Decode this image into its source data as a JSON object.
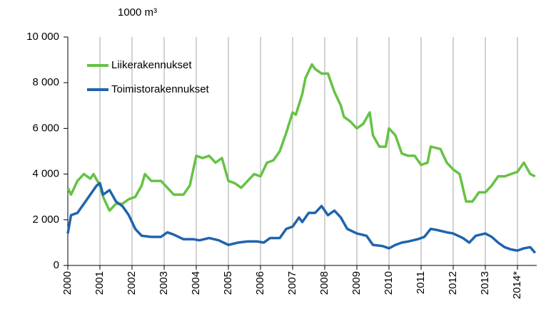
{
  "chart_data": {
    "type": "line",
    "y_unit_label": "1000 m³",
    "xlim": [
      2000,
      2014.6
    ],
    "xticks": [
      2000,
      2001,
      2002,
      2003,
      2004,
      2005,
      2006,
      2007,
      2008,
      2009,
      2010,
      2011,
      2012,
      2013,
      {
        "value": 2014,
        "label": "2014*"
      }
    ],
    "ylim": [
      0,
      10000
    ],
    "yticks": [
      {
        "value": 0,
        "label": "0"
      },
      {
        "value": 2000,
        "label": "2 000"
      },
      {
        "value": 4000,
        "label": "4 000"
      },
      {
        "value": 6000,
        "label": "6 000"
      },
      {
        "value": 8000,
        "label": "8 000"
      },
      {
        "value": 10000,
        "label": "10 000"
      }
    ],
    "xgrid": true,
    "ygrid": false,
    "legend": "top-left",
    "series": [
      {
        "name": "Liikerakennukset",
        "color": "#66c244",
        "x": [
          2000.0,
          2000.1,
          2000.3,
          2000.5,
          2000.7,
          2000.8,
          2001.0,
          2001.1,
          2001.3,
          2001.5,
          2001.7,
          2001.9,
          2002.1,
          2002.3,
          2002.4,
          2002.6,
          2002.9,
          2003.1,
          2003.3,
          2003.6,
          2003.8,
          2004.0,
          2004.2,
          2004.4,
          2004.6,
          2004.8,
          2005.0,
          2005.2,
          2005.4,
          2005.6,
          2005.8,
          2006.0,
          2006.2,
          2006.4,
          2006.6,
          2006.8,
          2007.0,
          2007.1,
          2007.3,
          2007.4,
          2007.6,
          2007.7,
          2007.9,
          2008.1,
          2008.3,
          2008.5,
          2008.6,
          2008.8,
          2009.0,
          2009.2,
          2009.4,
          2009.5,
          2009.7,
          2009.9,
          2010.0,
          2010.2,
          2010.4,
          2010.6,
          2010.8,
          2011.0,
          2011.2,
          2011.3,
          2011.6,
          2011.8,
          2012.0,
          2012.2,
          2012.4,
          2012.6,
          2012.8,
          2013.0,
          2013.2,
          2013.4,
          2013.6,
          2013.8,
          2014.0,
          2014.2,
          2014.4,
          2014.55
        ],
        "values": [
          3400,
          3100,
          3700,
          4000,
          3800,
          4000,
          3500,
          3000,
          2400,
          2700,
          2700,
          2900,
          3000,
          3500,
          4000,
          3700,
          3700,
          3400,
          3100,
          3100,
          3500,
          4800,
          4700,
          4800,
          4500,
          4700,
          3700,
          3600,
          3400,
          3700,
          4000,
          3900,
          4500,
          4600,
          5000,
          5800,
          6700,
          6600,
          7500,
          8200,
          8800,
          8600,
          8400,
          8400,
          7600,
          7000,
          6500,
          6300,
          6000,
          6200,
          6700,
          5700,
          5200,
          5200,
          6000,
          5700,
          4900,
          4800,
          4800,
          4400,
          4500,
          5200,
          5100,
          4500,
          4200,
          4000,
          2800,
          2800,
          3200,
          3200,
          3500,
          3900,
          3900,
          4000,
          4100,
          4500,
          4000,
          3900
        ]
      },
      {
        "name": "Toimistorakennukset",
        "color": "#1f64ad",
        "x": [
          2000.0,
          2000.1,
          2000.3,
          2000.5,
          2000.7,
          2000.9,
          2001.0,
          2001.1,
          2001.3,
          2001.5,
          2001.7,
          2001.9,
          2002.1,
          2002.3,
          2002.6,
          2002.9,
          2003.1,
          2003.3,
          2003.6,
          2003.9,
          2004.1,
          2004.4,
          2004.7,
          2005.0,
          2005.3,
          2005.6,
          2005.9,
          2006.1,
          2006.3,
          2006.6,
          2006.8,
          2007.0,
          2007.2,
          2007.3,
          2007.5,
          2007.7,
          2007.9,
          2008.1,
          2008.3,
          2008.5,
          2008.7,
          2009.0,
          2009.3,
          2009.5,
          2009.8,
          2010.0,
          2010.2,
          2010.4,
          2010.6,
          2010.9,
          2011.1,
          2011.3,
          2011.5,
          2011.8,
          2012.0,
          2012.3,
          2012.5,
          2012.7,
          2013.0,
          2013.2,
          2013.4,
          2013.6,
          2013.8,
          2014.0,
          2014.2,
          2014.4,
          2014.55
        ],
        "values": [
          1400,
          2200,
          2300,
          2700,
          3100,
          3500,
          3600,
          3100,
          3300,
          2800,
          2600,
          2200,
          1600,
          1300,
          1250,
          1250,
          1450,
          1350,
          1150,
          1150,
          1100,
          1200,
          1100,
          900,
          1000,
          1050,
          1050,
          1000,
          1200,
          1200,
          1600,
          1700,
          2100,
          1900,
          2300,
          2300,
          2600,
          2200,
          2400,
          2100,
          1600,
          1400,
          1300,
          900,
          850,
          750,
          900,
          1000,
          1050,
          1150,
          1250,
          1600,
          1550,
          1450,
          1400,
          1200,
          1000,
          1300,
          1400,
          1250,
          1000,
          800,
          700,
          650,
          750,
          800,
          550
        ]
      }
    ]
  }
}
